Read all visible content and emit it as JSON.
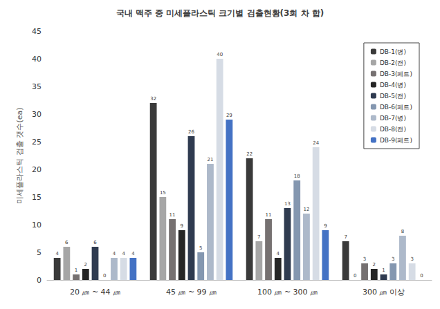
{
  "chart_data": {
    "type": "bar",
    "title": "국내 맥주 중 미세플라스틱 크기별 검출현황(3회 차 합)",
    "y_label": "미세플라스틱 검출 갯수(ea)",
    "categories": [
      "20 ㎛ ~ 44 ㎛",
      "45 ㎛ ~ 99 ㎛",
      "100 ㎛ ~ 300 ㎛",
      "300 ㎛ 이상"
    ],
    "series": [
      {
        "name": "DB-1(병)",
        "color": "#3a3a3a",
        "values": [
          4,
          32,
          22,
          7
        ]
      },
      {
        "name": "DB-2(캔)",
        "color": "#a6a6a6",
        "values": [
          6,
          15,
          7,
          0
        ]
      },
      {
        "name": "DB-3(페트)",
        "color": "#767171",
        "values": [
          1,
          11,
          11,
          3
        ]
      },
      {
        "name": "DB-4(병)",
        "color": "#262626",
        "values": [
          2,
          9,
          4,
          2
        ]
      },
      {
        "name": "DB-5(캔)",
        "color": "#2f3b50",
        "values": [
          6,
          26,
          13,
          1
        ]
      },
      {
        "name": "DB-6(페트)",
        "color": "#8497b0",
        "values": [
          0,
          5,
          18,
          3
        ]
      },
      {
        "name": "DB-7(병)",
        "color": "#adb9ca",
        "values": [
          4,
          21,
          12,
          8
        ]
      },
      {
        "name": "DB-8(캔)",
        "color": "#d6dce5",
        "values": [
          4,
          40,
          24,
          3
        ]
      },
      {
        "name": "DB-9(페트)",
        "color": "#4472c4",
        "values": [
          4,
          29,
          9,
          0
        ]
      }
    ],
    "ylim": [
      0,
      45
    ],
    "yticks": [
      0,
      5,
      10,
      15,
      20,
      25,
      30,
      35,
      40,
      45
    ],
    "grid": false,
    "legend": "upper right",
    "data_labels": true
  }
}
